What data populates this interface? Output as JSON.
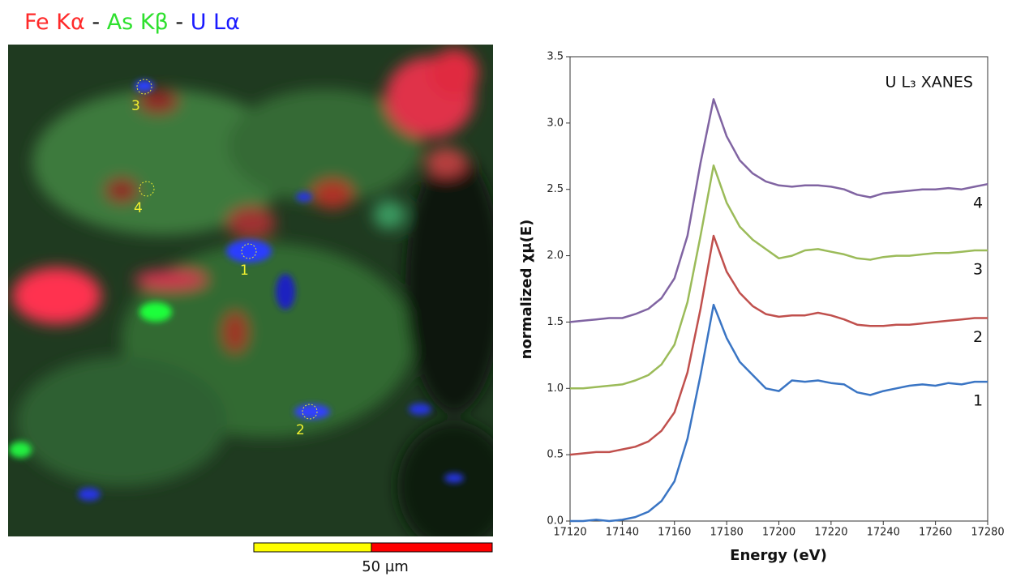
{
  "map": {
    "title": [
      "Fe Kα",
      "-",
      "As Kβ",
      "-",
      "U Lα"
    ],
    "points": [
      "1",
      "2",
      "3",
      "4"
    ],
    "scale_bar": "50 µm"
  },
  "chart_data": {
    "type": "line",
    "annotation": "U L₃ XANES",
    "x_label": "Energy (eV)",
    "y_label": "normalized χμ(E)",
    "x": [
      17120,
      17125,
      17130,
      17135,
      17140,
      17145,
      17150,
      17155,
      17160,
      17165,
      17170,
      17175,
      17180,
      17185,
      17190,
      17195,
      17200,
      17205,
      17210,
      17215,
      17220,
      17225,
      17230,
      17235,
      17240,
      17245,
      17250,
      17255,
      17260,
      17265,
      17270,
      17275,
      17280
    ],
    "series": [
      {
        "name": "1",
        "color": "#3a75c4",
        "values": [
          0.0,
          0.0,
          0.01,
          0.0,
          0.01,
          0.03,
          0.07,
          0.15,
          0.3,
          0.62,
          1.1,
          1.63,
          1.38,
          1.2,
          1.1,
          1.0,
          0.98,
          1.06,
          1.05,
          1.06,
          1.04,
          1.03,
          0.97,
          0.95,
          0.98,
          1.0,
          1.02,
          1.03,
          1.02,
          1.04,
          1.03,
          1.05,
          1.05
        ]
      },
      {
        "name": "2",
        "color": "#c0504d",
        "values": [
          0.5,
          0.51,
          0.52,
          0.52,
          0.54,
          0.56,
          0.6,
          0.68,
          0.82,
          1.12,
          1.6,
          2.15,
          1.88,
          1.72,
          1.62,
          1.56,
          1.54,
          1.55,
          1.55,
          1.57,
          1.55,
          1.52,
          1.48,
          1.47,
          1.47,
          1.48,
          1.48,
          1.49,
          1.5,
          1.51,
          1.52,
          1.53,
          1.53
        ]
      },
      {
        "name": "3",
        "color": "#9bbb59",
        "values": [
          1.0,
          1.0,
          1.01,
          1.02,
          1.03,
          1.06,
          1.1,
          1.18,
          1.33,
          1.65,
          2.15,
          2.68,
          2.4,
          2.22,
          2.12,
          2.05,
          1.98,
          2.0,
          2.04,
          2.05,
          2.03,
          2.01,
          1.98,
          1.97,
          1.99,
          2.0,
          2.0,
          2.01,
          2.02,
          2.02,
          2.03,
          2.04,
          2.04
        ]
      },
      {
        "name": "4",
        "color": "#8064a2",
        "values": [
          1.5,
          1.51,
          1.52,
          1.53,
          1.53,
          1.56,
          1.6,
          1.68,
          1.83,
          2.15,
          2.7,
          3.18,
          2.9,
          2.72,
          2.62,
          2.56,
          2.53,
          2.52,
          2.53,
          2.53,
          2.52,
          2.5,
          2.46,
          2.44,
          2.47,
          2.48,
          2.49,
          2.5,
          2.5,
          2.51,
          2.5,
          2.52,
          2.54
        ]
      }
    ],
    "xlim": [
      17120,
      17280
    ],
    "xticks": [
      17120,
      17140,
      17160,
      17180,
      17200,
      17220,
      17240,
      17260,
      17280
    ],
    "ylim": [
      0,
      3.5
    ],
    "yticks": [
      {
        "value": 0,
        "label": "0.0"
      },
      0.5,
      {
        "value": 1,
        "label": "1.0"
      },
      1.5,
      {
        "value": 2,
        "label": "2.0"
      },
      2.5,
      {
        "value": 3,
        "label": "3.0"
      },
      3.5
    ],
    "grid": false
  }
}
